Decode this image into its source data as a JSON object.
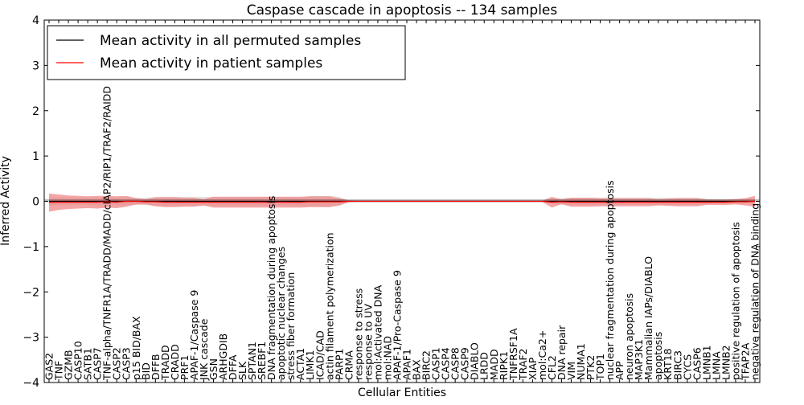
{
  "chart_data": {
    "type": "line",
    "title": "Caspase cascade in apoptosis -- 134 samples",
    "xlabel": "Cellular Entities",
    "ylabel": "Inferred Activity",
    "ylim": [
      -4,
      4
    ],
    "yticks": [
      "4",
      "3",
      "2",
      "1",
      "0",
      "−1",
      "−2",
      "−3",
      "−4"
    ],
    "grid": false,
    "legend_position": "top-left",
    "categories": [
      "GAS2",
      "TNF",
      "GZMB",
      "CASP10",
      "SATB1",
      "CASP7",
      "TNF-alpha/TNFR1A/TRADD/MADD/cIAP2/RIP1/TRAF2/RAIDD",
      "CASP2",
      "CASP3",
      "p15 BID/BAX",
      "BID",
      "DFFB",
      "TRADD",
      "CRADD",
      "PRF1",
      "APAF-1/Caspase 9",
      "JNK cascade",
      "GSN",
      "ARHGDIB",
      "DFFA",
      "SLK",
      "SPTAN1",
      "SREBF1",
      "DNA fragmentation during apoptosis",
      "apoptotic nuclear changes",
      "stress fiber formation",
      "ACTA1",
      "LIMK1",
      "ICAD/CAD",
      "actin filament polymerization",
      "PARP1",
      "CRMA",
      "response to stress",
      "response to UV",
      "mol:Activated DNA",
      "mol:NAD",
      "APAF-1/Pro-Caspase 9",
      "APAF1",
      "BAX",
      "BIRC2",
      "CASP1",
      "CASP4",
      "CASP8",
      "CASP9",
      "DIABLO",
      "LRDD",
      "MADD",
      "RIPK1",
      "TNFRSF1A",
      "TRAF2",
      "XIAP",
      "mol:Ca2+",
      "CFL2",
      "DNA repair",
      "VIM",
      "NUMA1",
      "PTK2",
      "TOP1",
      "nuclear fragmentation during apoptosis",
      "APP",
      "neuron apoptosis",
      "MAP3K1",
      "Mammalian IAPs/DIABLO",
      "apoptosis",
      "KRT18",
      "BIRC3",
      "CYCS",
      "CASP6",
      "LMNB1",
      "LMNA",
      "LMNB2",
      "positive regulation of apoptosis",
      "TFAP2A",
      "negative regulation of DNA binding"
    ],
    "series": [
      {
        "name": "Mean activity in all permuted samples",
        "color": "#000000",
        "band_color": "#d9d9d9",
        "values": [
          0,
          0,
          0,
          0,
          0,
          0,
          0,
          0,
          0,
          0,
          0,
          0,
          0,
          0,
          0,
          0,
          0,
          0,
          0,
          0,
          0,
          0,
          0,
          0,
          0,
          0,
          0,
          0,
          0,
          0,
          0,
          0,
          0,
          0,
          0,
          0,
          0,
          0,
          0,
          0,
          0,
          0,
          0,
          0,
          0,
          0,
          0,
          0,
          0,
          0,
          0,
          0,
          0,
          0,
          0,
          0,
          0,
          0,
          0,
          0,
          0,
          0,
          0,
          0,
          0,
          0,
          0,
          0,
          0,
          0,
          0,
          0,
          0,
          0
        ],
        "spread": [
          0.1,
          0.09,
          0.09,
          0.08,
          0.08,
          0.09,
          0.09,
          0.09,
          0.09,
          0.08,
          0.08,
          0.09,
          0.1,
          0.1,
          0.1,
          0.1,
          0.1,
          0.1,
          0.1,
          0.1,
          0.1,
          0.1,
          0.1,
          0.1,
          0.1,
          0.1,
          0.1,
          0.11,
          0.12,
          0.12,
          0.1,
          0.02,
          0.02,
          0.02,
          0.02,
          0.02,
          0.02,
          0.02,
          0.02,
          0.02,
          0.02,
          0.02,
          0.02,
          0.02,
          0.02,
          0.02,
          0.02,
          0.02,
          0.02,
          0.02,
          0.02,
          0.02,
          0.05,
          0.08,
          0.08,
          0.08,
          0.08,
          0.08,
          0.08,
          0.08,
          0.08,
          0.08,
          0.08,
          0.08,
          0.08,
          0.08,
          0.08,
          0.08,
          0.06,
          0.05,
          0.05,
          0.05,
          0.05,
          0.05
        ]
      },
      {
        "name": "Mean activity in patient samples",
        "color": "#ff0000",
        "band_color": "#f08080",
        "values": [
          -0.03,
          -0.02,
          -0.02,
          -0.02,
          -0.02,
          -0.02,
          -0.01,
          -0.02,
          0,
          0,
          -0.01,
          -0.01,
          -0.02,
          -0.02,
          -0.02,
          -0.02,
          -0.02,
          -0.02,
          -0.02,
          -0.02,
          -0.02,
          -0.02,
          -0.02,
          -0.02,
          -0.02,
          -0.02,
          -0.02,
          -0.01,
          -0.01,
          -0.01,
          -0.01,
          0,
          0,
          0,
          0,
          0,
          0,
          0,
          0,
          0,
          0,
          0,
          0,
          0,
          0,
          0,
          0,
          0,
          0,
          0,
          0,
          0,
          -0.02,
          -0.01,
          -0.02,
          -0.02,
          -0.02,
          -0.02,
          -0.02,
          -0.02,
          -0.02,
          -0.02,
          -0.02,
          -0.02,
          -0.02,
          -0.02,
          -0.02,
          -0.02,
          -0.02,
          -0.02,
          -0.02,
          -0.01,
          -0.01,
          0
        ],
        "spread": [
          0.2,
          0.17,
          0.15,
          0.14,
          0.13,
          0.14,
          0.13,
          0.13,
          0.12,
          0.07,
          0.06,
          0.1,
          0.11,
          0.11,
          0.1,
          0.1,
          0.07,
          0.12,
          0.12,
          0.12,
          0.12,
          0.12,
          0.12,
          0.12,
          0.12,
          0.12,
          0.12,
          0.12,
          0.12,
          0.12,
          0.08,
          0.02,
          0.01,
          0.01,
          0.01,
          0.01,
          0.01,
          0.01,
          0.01,
          0.01,
          0.01,
          0.01,
          0.01,
          0.01,
          0.01,
          0.01,
          0.01,
          0.01,
          0.01,
          0.01,
          0.01,
          0.01,
          0.12,
          0.05,
          0.1,
          0.1,
          0.1,
          0.09,
          0.09,
          0.09,
          0.09,
          0.09,
          0.09,
          0.07,
          0.08,
          0.09,
          0.09,
          0.09,
          0.06,
          0.06,
          0.06,
          0.06,
          0.08,
          0.12
        ]
      }
    ]
  }
}
